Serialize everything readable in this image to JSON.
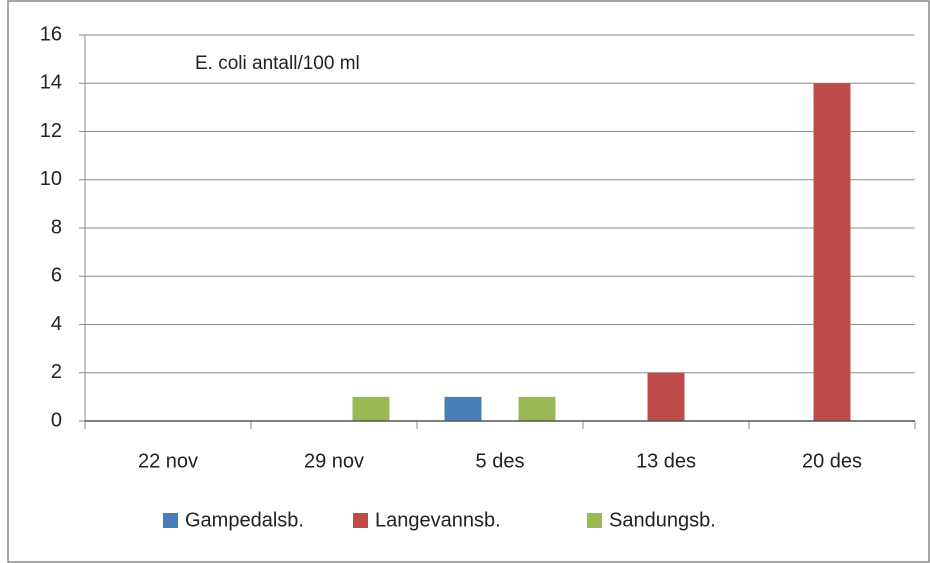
{
  "chart_data": {
    "type": "bar",
    "annotation": "E. coli  antall/100 ml",
    "categories": [
      "22 nov",
      "29 nov",
      "5 des",
      "13 des",
      "20 des"
    ],
    "series": [
      {
        "name": "Gampedalsb.",
        "color": "#4a7ebb",
        "values": [
          0,
          0,
          1,
          0,
          0
        ]
      },
      {
        "name": "Langevannsb.",
        "color": "#be4b48",
        "values": [
          0,
          0,
          0,
          2,
          14
        ]
      },
      {
        "name": "Sandungsb.",
        "color": "#98b954",
        "values": [
          0,
          1,
          1,
          0,
          0
        ]
      }
    ],
    "ylim": [
      0,
      16
    ],
    "yticks": [
      0,
      2,
      4,
      6,
      8,
      10,
      12,
      14,
      16
    ],
    "grid": true,
    "legend": "bottom"
  }
}
